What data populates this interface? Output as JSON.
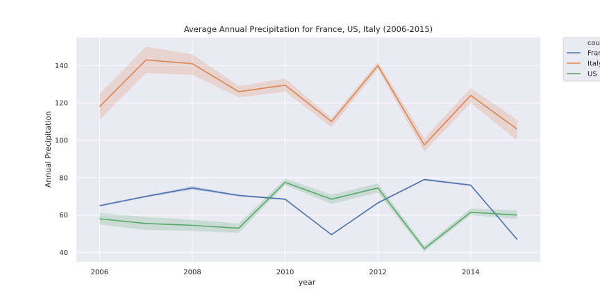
{
  "chart_data": {
    "type": "line",
    "title": "Average Annual Precipitation for France, US, Italy (2006-2015)",
    "xlabel": "year",
    "ylabel": "Annual Precipitation",
    "xlim": [
      2005.5,
      2015.5
    ],
    "ylim": [
      35,
      155
    ],
    "xticks": [
      2006,
      2008,
      2010,
      2012,
      2014
    ],
    "yticks": [
      40,
      60,
      80,
      100,
      120,
      140
    ],
    "grid": true,
    "legend": {
      "title": "cou",
      "position": "outside-top-right"
    },
    "x": [
      2006,
      2007,
      2008,
      2009,
      2010,
      2011,
      2012,
      2013,
      2014,
      2015
    ],
    "series": [
      {
        "name": "Fran",
        "color": "#4c72b0",
        "values": [
          65,
          70,
          74.5,
          70.5,
          68.5,
          49.5,
          66.5,
          79,
          76,
          47
        ],
        "ci_lower": [
          64.5,
          69.5,
          73.5,
          70,
          68,
          49.5,
          66,
          78.5,
          75.5,
          47
        ],
        "ci_upper": [
          65.5,
          70.5,
          75.5,
          71,
          69,
          49.5,
          67,
          79.5,
          76.5,
          47
        ]
      },
      {
        "name": "Italy",
        "color": "#dd8452",
        "values": [
          118,
          143,
          141,
          126,
          129.5,
          110,
          140,
          97.5,
          124,
          106
        ],
        "ci_lower": [
          111,
          136,
          135,
          123,
          126,
          107,
          138,
          94,
          120,
          100
        ],
        "ci_upper": [
          125,
          150,
          146,
          129,
          133,
          112,
          142,
          101,
          128,
          111
        ]
      },
      {
        "name": "US",
        "color": "#55a868",
        "values": [
          58,
          55.5,
          54.5,
          53,
          77.5,
          68.5,
          74.5,
          42,
          61.5,
          60
        ],
        "ci_lower": [
          55,
          52,
          51.5,
          50.5,
          76,
          66,
          72,
          40.5,
          60,
          58
        ],
        "ci_upper": [
          61,
          59,
          57.5,
          55.5,
          79.5,
          71,
          77,
          43.5,
          63.5,
          62.5
        ]
      }
    ]
  }
}
